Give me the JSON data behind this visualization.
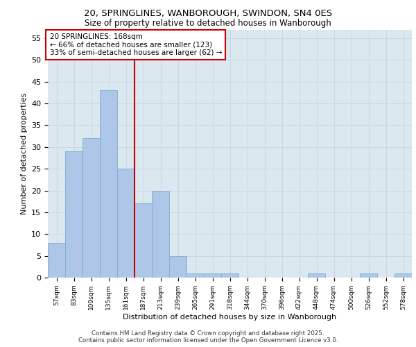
{
  "title_line1": "20, SPRINGLINES, WANBOROUGH, SWINDON, SN4 0ES",
  "title_line2": "Size of property relative to detached houses in Wanborough",
  "xlabel": "Distribution of detached houses by size in Wanborough",
  "ylabel": "Number of detached properties",
  "categories": [
    "57sqm",
    "83sqm",
    "109sqm",
    "135sqm",
    "161sqm",
    "187sqm",
    "213sqm",
    "239sqm",
    "265sqm",
    "291sqm",
    "318sqm",
    "344sqm",
    "370sqm",
    "396sqm",
    "422sqm",
    "448sqm",
    "474sqm",
    "500sqm",
    "526sqm",
    "552sqm",
    "578sqm"
  ],
  "values": [
    8,
    29,
    32,
    43,
    25,
    17,
    20,
    5,
    1,
    1,
    1,
    0,
    0,
    0,
    0,
    1,
    0,
    0,
    1,
    0,
    1
  ],
  "bar_color": "#aec6e8",
  "bar_edge_color": "#7aaed0",
  "vline_color": "#cc0000",
  "annotation_text": "20 SPRINGLINES: 168sqm\n← 66% of detached houses are smaller (123)\n33% of semi-detached houses are larger (62) →",
  "annotation_box_color": "#ffffff",
  "annotation_box_edge_color": "#cc0000",
  "ylim": [
    0,
    57
  ],
  "yticks": [
    0,
    5,
    10,
    15,
    20,
    25,
    30,
    35,
    40,
    45,
    50,
    55
  ],
  "grid_color": "#c8d8e8",
  "bg_color": "#dce8f0",
  "footer_line1": "Contains HM Land Registry data © Crown copyright and database right 2025.",
  "footer_line2": "Contains public sector information licensed under the Open Government Licence v3.0."
}
